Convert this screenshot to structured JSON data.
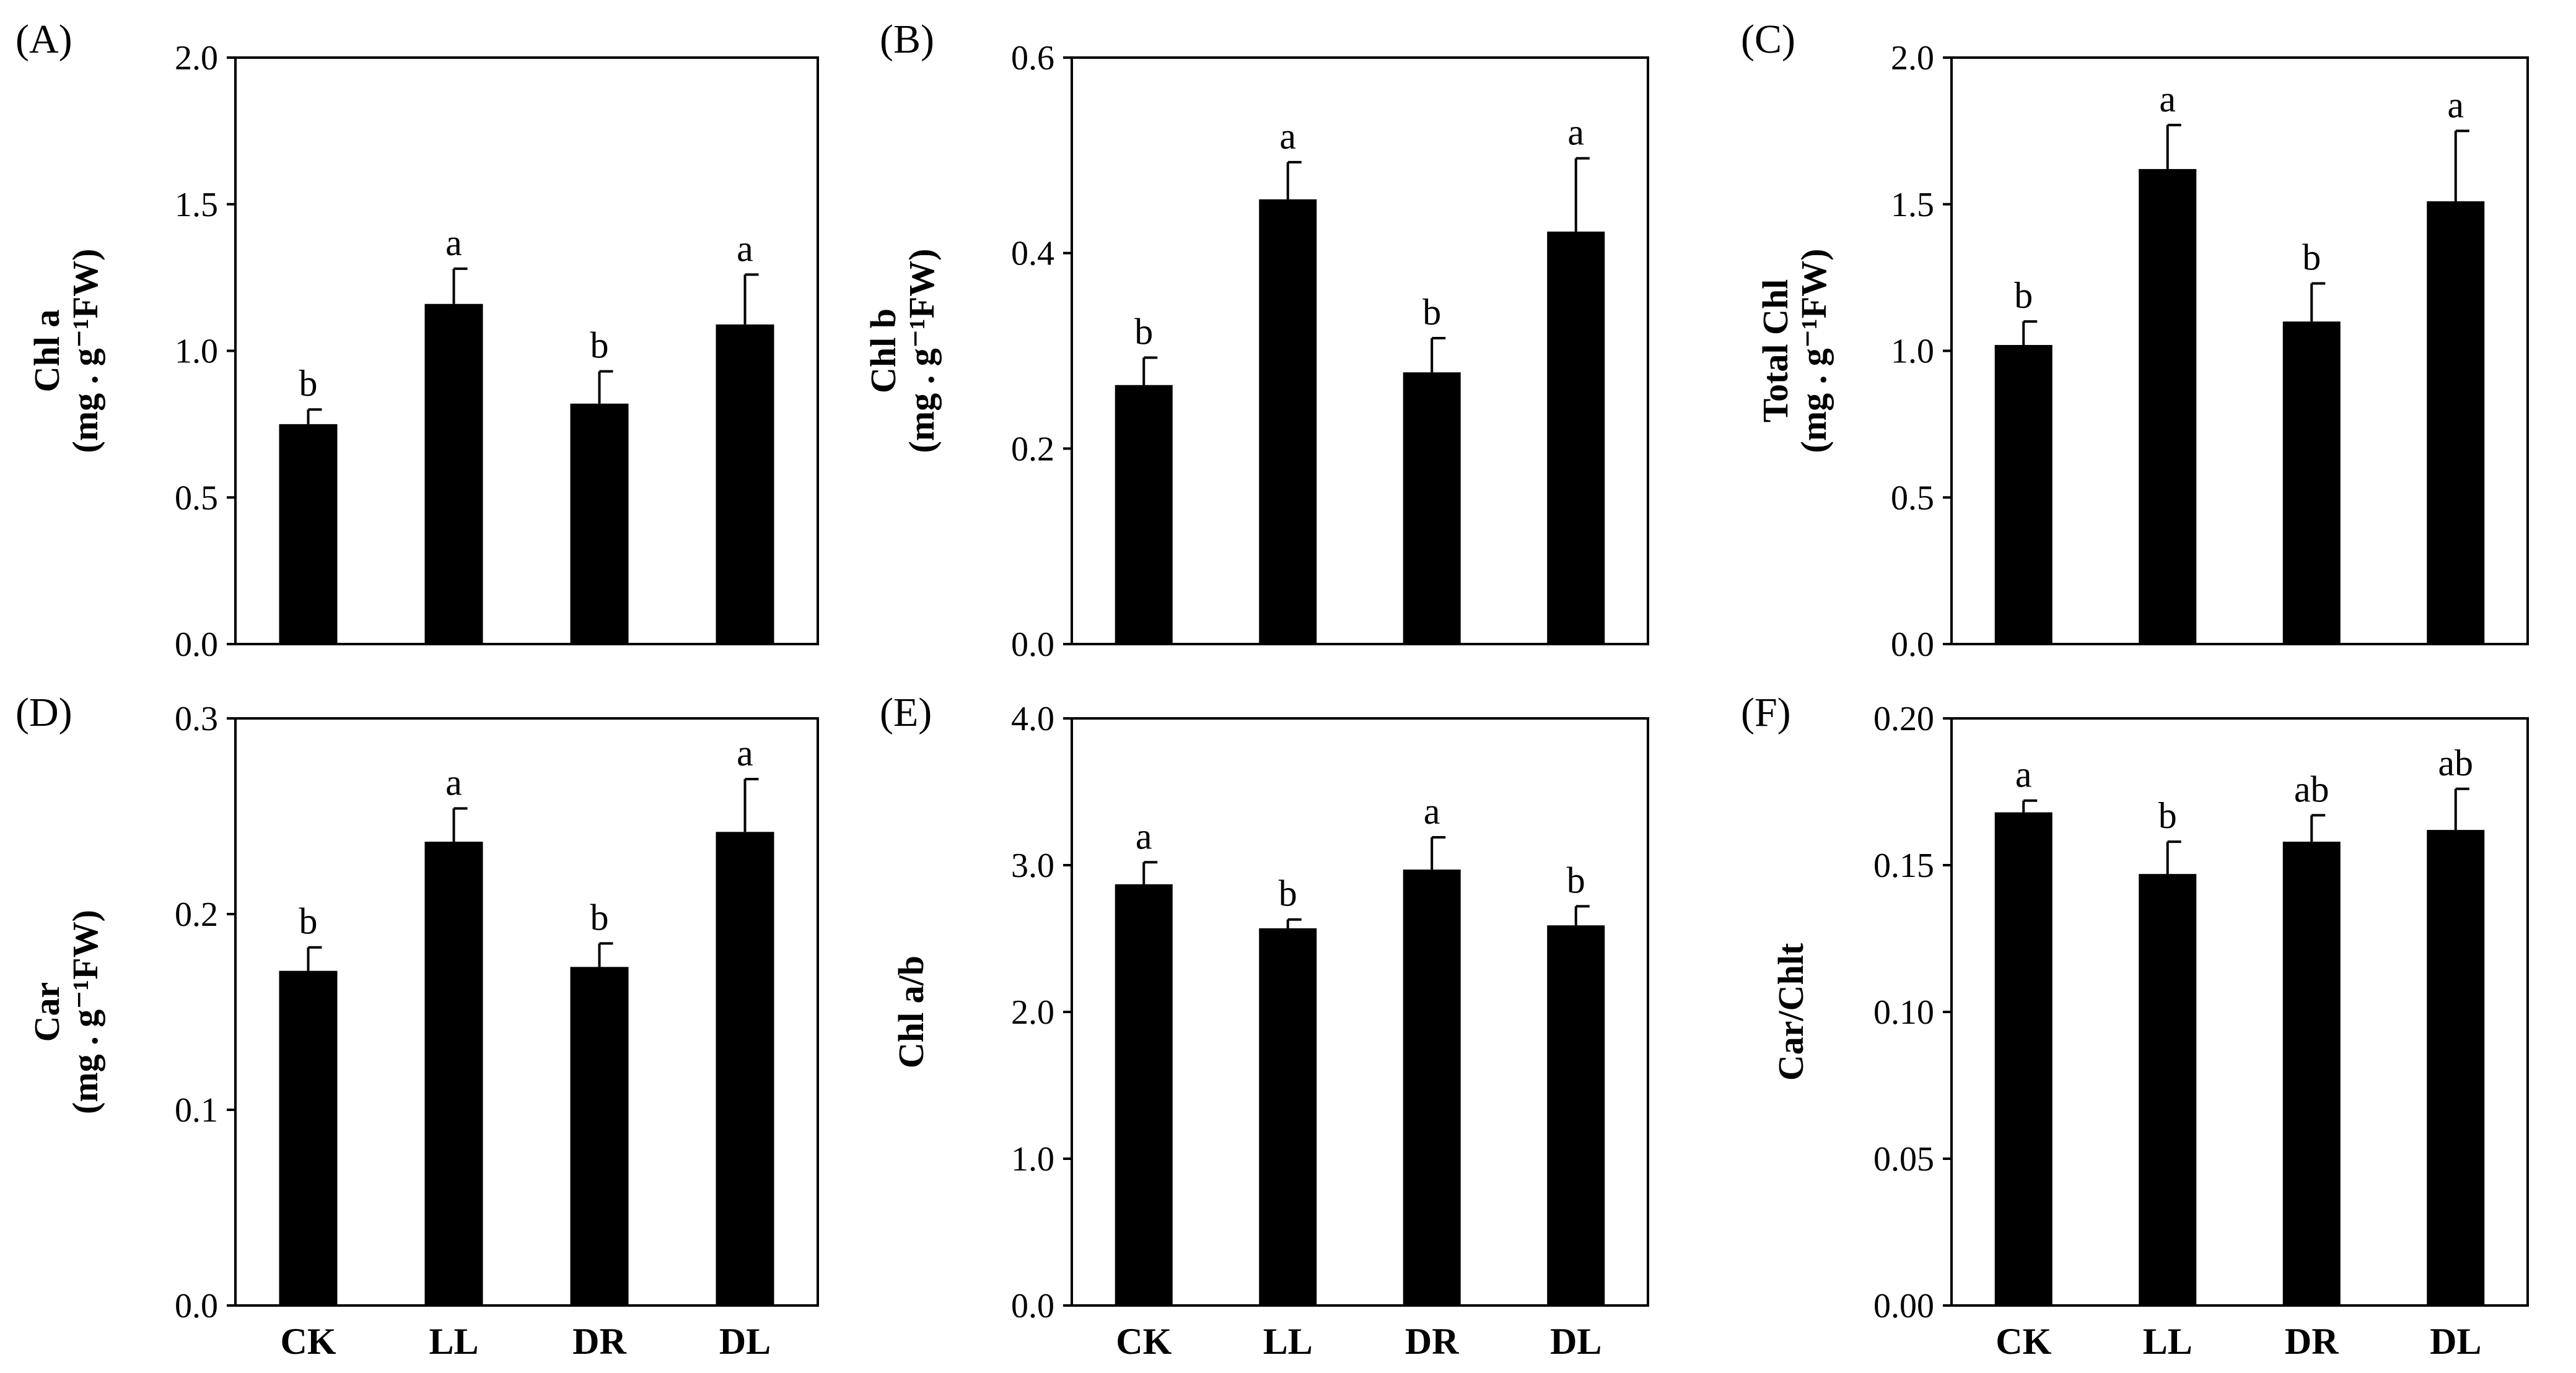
{
  "chart_data": [
    {
      "type": "bar",
      "panel_label": "(A)",
      "ylabel_lines": [
        "Chl a",
        "(mg . g⁻¹FW)"
      ],
      "categories": [
        "CK",
        "LL",
        "DR",
        "DL"
      ],
      "values": [
        0.75,
        1.16,
        0.82,
        1.09
      ],
      "errors": [
        0.05,
        0.12,
        0.11,
        0.17
      ],
      "letters": [
        "b",
        "a",
        "b",
        "a"
      ],
      "ylim": [
        0,
        2.0
      ],
      "yticks": [
        0.0,
        0.5,
        1.0,
        1.5,
        2.0
      ],
      "ytick_labels": [
        "0.0",
        "0.5",
        "1.0",
        "1.5",
        "2.0"
      ],
      "show_xlabels": false
    },
    {
      "type": "bar",
      "panel_label": "(B)",
      "ylabel_lines": [
        "Chl b",
        "(mg . g⁻¹FW)"
      ],
      "categories": [
        "CK",
        "LL",
        "DR",
        "DL"
      ],
      "values": [
        0.265,
        0.455,
        0.278,
        0.422
      ],
      "errors": [
        0.028,
        0.038,
        0.035,
        0.075
      ],
      "letters": [
        "b",
        "a",
        "b",
        "a"
      ],
      "ylim": [
        0,
        0.6
      ],
      "yticks": [
        0.0,
        0.2,
        0.4,
        0.6
      ],
      "ytick_labels": [
        "0.0",
        "0.2",
        "0.4",
        "0.6"
      ],
      "show_xlabels": false
    },
    {
      "type": "bar",
      "panel_label": "(C)",
      "ylabel_lines": [
        "Total Chl",
        "(mg . g⁻¹FW)"
      ],
      "categories": [
        "CK",
        "LL",
        "DR",
        "DL"
      ],
      "values": [
        1.02,
        1.62,
        1.1,
        1.51
      ],
      "errors": [
        0.08,
        0.15,
        0.13,
        0.24
      ],
      "letters": [
        "b",
        "a",
        "b",
        "a"
      ],
      "ylim": [
        0,
        2.0
      ],
      "yticks": [
        0.0,
        0.5,
        1.0,
        1.5,
        2.0
      ],
      "ytick_labels": [
        "0.0",
        "0.5",
        "1.0",
        "1.5",
        "2.0"
      ],
      "show_xlabels": false
    },
    {
      "type": "bar",
      "panel_label": "(D)",
      "ylabel_lines": [
        "Car",
        "(mg . g⁻¹FW)"
      ],
      "categories": [
        "CK",
        "LL",
        "DR",
        "DL"
      ],
      "values": [
        0.171,
        0.237,
        0.173,
        0.242
      ],
      "errors": [
        0.012,
        0.017,
        0.012,
        0.027
      ],
      "letters": [
        "b",
        "a",
        "b",
        "a"
      ],
      "ylim": [
        0,
        0.3
      ],
      "yticks": [
        0.0,
        0.1,
        0.2,
        0.3
      ],
      "ytick_labels": [
        "0.0",
        "0.1",
        "0.2",
        "0.3"
      ],
      "show_xlabels": true
    },
    {
      "type": "bar",
      "panel_label": "(E)",
      "ylabel_lines": [
        "Chl a/b"
      ],
      "categories": [
        "CK",
        "LL",
        "DR",
        "DL"
      ],
      "values": [
        2.87,
        2.57,
        2.97,
        2.59
      ],
      "errors": [
        0.15,
        0.06,
        0.22,
        0.13
      ],
      "letters": [
        "a",
        "b",
        "a",
        "b"
      ],
      "ylim": [
        0,
        4.0
      ],
      "yticks": [
        0.0,
        1.0,
        2.0,
        3.0,
        4.0
      ],
      "ytick_labels": [
        "0.0",
        "1.0",
        "2.0",
        "3.0",
        "4.0"
      ],
      "show_xlabels": true
    },
    {
      "type": "bar",
      "panel_label": "(F)",
      "ylabel_lines": [
        "Car/Chlt"
      ],
      "categories": [
        "CK",
        "LL",
        "DR",
        "DL"
      ],
      "values": [
        0.168,
        0.147,
        0.158,
        0.162
      ],
      "errors": [
        0.004,
        0.011,
        0.009,
        0.014
      ],
      "letters": [
        "a",
        "b",
        "ab",
        "ab"
      ],
      "ylim": [
        0,
        0.2
      ],
      "yticks": [
        0.0,
        0.05,
        0.1,
        0.15,
        0.2
      ],
      "ytick_labels": [
        "0.00",
        "0.05",
        "0.10",
        "0.15",
        "0.20"
      ],
      "show_xlabels": true
    }
  ]
}
